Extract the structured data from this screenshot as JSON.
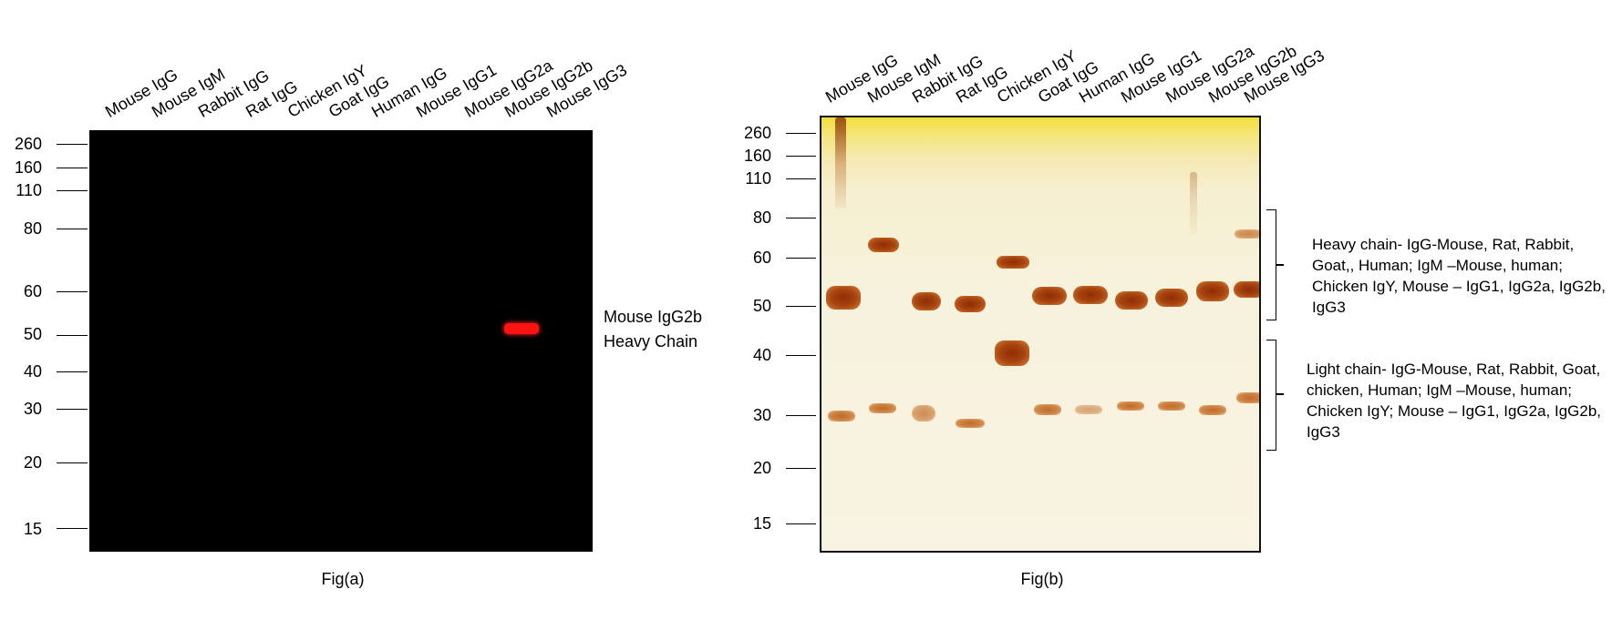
{
  "lanes": [
    "Mouse IgG",
    "Mouse IgM",
    "Rabbit IgG",
    "Rat IgG",
    "Chicken IgY",
    "Goat IgG",
    "Human IgG",
    "Mouse IgG1",
    "Mouse IgG2a",
    "Mouse IgG2b",
    "Mouse IgG3"
  ],
  "mw_markers": [
    "260",
    "160",
    "110",
    "80",
    "60",
    "50",
    "40",
    "30",
    "20",
    "15"
  ],
  "panel_a": {
    "annotation_line1": "Mouse IgG2b",
    "annotation_line2": "Heavy Chain",
    "caption": "Fig(a)"
  },
  "panel_b": {
    "heavy_chain_note": "Heavy chain- IgG-Mouse, Rat, Rabbit, Goat,, Human; IgM –Mouse, human; Chicken IgY, Mouse – IgG1, IgG2a, IgG2b, IgG3",
    "light_chain_note": "Light chain- IgG-Mouse, Rat, Rabbit, Goat, chicken, Human; IgM –Mouse, human; Chicken IgY; Mouse – IgG1, IgG2a, IgG2b, IgG3",
    "caption": "Fig(b)"
  },
  "colors": {
    "blot_a_background": "#000000",
    "blot_a_band": "#ff1212",
    "blot_b_background": "#f7f2dd",
    "blot_b_band": "#a8440f"
  }
}
